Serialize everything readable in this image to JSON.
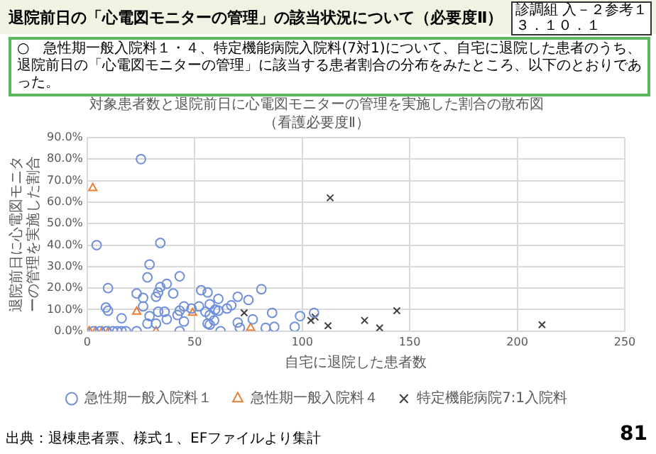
{
  "chart_data": {
    "type": "scatter",
    "title": "対象患者数と退院前日に心電図モニターの管理を実施した割合の散布図",
    "subtitle": "（看護必要度Ⅱ）",
    "xlabel": "自宅に退院した患者数",
    "ylabel": "退院前日に心電図モニターの管理を実施した割合",
    "annotations": [
      "退院前日の「心電図モニターの管理」の該当状況について（必要度Ⅱ）",
      "診調組 入－２参考１",
      "３．１０．１",
      "○　急性期一般入院料１・４、特定機能病院入院料(7対1)について、自宅に退院した患者のうち、退院前日の「心電図モニターの管理」に該当する患者割合の分布をみたところ、以下のとおりであった。",
      "出典：退棟患者票、様式１、EFファイルより集計",
      "81"
    ],
    "xlim": [
      0,
      250
    ],
    "xticks": [
      0,
      50,
      100,
      150,
      200,
      250
    ],
    "ylim": [
      0,
      90
    ],
    "yticks": [
      {
        "value": 0,
        "label": "0.0%"
      },
      {
        "value": 10,
        "label": "10.0%"
      },
      {
        "value": 20,
        "label": "20.0%"
      },
      {
        "value": 30,
        "label": "30.0%"
      },
      {
        "value": 40,
        "label": "40.0%"
      },
      {
        "value": 50,
        "label": "50.0%"
      },
      {
        "value": 60,
        "label": "60.0%"
      },
      {
        "value": 70,
        "label": "70.0%"
      },
      {
        "value": 80,
        "label": "80.0%"
      },
      {
        "value": 90,
        "label": "90.0%"
      }
    ],
    "grid": true,
    "legend": "bottom",
    "series": [
      {
        "name": "急性期一般入院料１",
        "color": "#6f8fdc",
        "marker": "circle",
        "x": [
          25,
          4.4,
          34,
          29,
          28,
          43,
          37,
          34,
          9.7,
          23,
          33,
          40,
          53,
          56,
          81,
          70,
          75,
          61,
          32,
          26,
          26,
          57,
          52,
          45,
          48.5,
          8.7,
          9.7,
          59.5,
          65,
          67,
          33,
          36,
          43,
          55,
          61,
          42,
          29,
          57,
          16,
          37,
          45,
          59,
          77,
          28,
          32,
          56,
          57,
          70,
          71,
          83,
          87,
          86,
          99,
          96.5,
          105.5,
          3,
          6,
          9,
          12,
          14,
          16,
          18,
          23,
          43,
          62
        ],
        "values": [
          80,
          40,
          41,
          31,
          25,
          25.5,
          22,
          20.5,
          20,
          17.5,
          18,
          17.5,
          19,
          18,
          19.5,
          16,
          14.5,
          15,
          16,
          15.5,
          11.5,
          12.5,
          11.5,
          11.5,
          10.5,
          11,
          9.5,
          10,
          10.5,
          12,
          9,
          9,
          9.5,
          9,
          9.5,
          7.5,
          7,
          7.5,
          6,
          5.5,
          4.5,
          5,
          5.5,
          3.5,
          3.5,
          3.5,
          3,
          4,
          1.5,
          1.5,
          2,
          8.5,
          7,
          2,
          8.5,
          0,
          0,
          0,
          0,
          0,
          0,
          0,
          0,
          0,
          0
        ]
      },
      {
        "name": "急性期一般入院料４",
        "color": "#ed7d31",
        "marker": "triangle",
        "x": [
          2.6,
          23,
          49,
          76,
          32,
          1,
          4,
          7,
          10
        ],
        "values": [
          66.5,
          9,
          8.5,
          1.5,
          0,
          0,
          0,
          0,
          0
        ]
      },
      {
        "name": "特定機能病院7:1入院料",
        "color": "#404040",
        "marker": "cross",
        "x": [
          73,
          113,
          104,
          106,
          112,
          129,
          136,
          144,
          211.5
        ],
        "values": [
          8.5,
          62,
          5,
          6.5,
          2.5,
          5,
          1.5,
          9.5,
          3
        ]
      }
    ]
  }
}
